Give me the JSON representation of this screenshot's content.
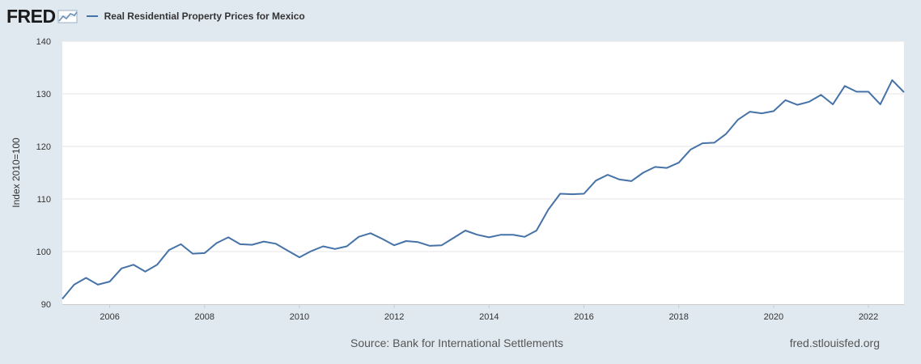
{
  "header": {
    "logo_text": "FRED",
    "logo_icon": "line-chart-icon"
  },
  "footer": {
    "source": "Source: Bank for International Settlements",
    "site": "fred.stlouisfed.org"
  },
  "colors": {
    "line": "#4572a7",
    "background": "#e1e9f0",
    "plot_background": "#ffffff",
    "grid": "#e6e6e6"
  },
  "chart_data": {
    "type": "line",
    "title": "",
    "xlabel": "",
    "ylabel": "Index 2010=100",
    "ylim": [
      90,
      140
    ],
    "yticks": [
      90,
      100,
      110,
      120,
      130,
      140
    ],
    "xlim": [
      2005.0,
      2022.75
    ],
    "xticks": [
      "2006",
      "2008",
      "2010",
      "2012",
      "2014",
      "2016",
      "2018",
      "2020",
      "2022"
    ],
    "grid": true,
    "legend_position": "top-left",
    "series": [
      {
        "name": "Real Residential Property Prices for Mexico",
        "x": [
          "2005-Q1",
          "2005-Q2",
          "2005-Q3",
          "2005-Q4",
          "2006-Q1",
          "2006-Q2",
          "2006-Q3",
          "2006-Q4",
          "2007-Q1",
          "2007-Q2",
          "2007-Q3",
          "2007-Q4",
          "2008-Q1",
          "2008-Q2",
          "2008-Q3",
          "2008-Q4",
          "2009-Q1",
          "2009-Q2",
          "2009-Q3",
          "2009-Q4",
          "2010-Q1",
          "2010-Q2",
          "2010-Q3",
          "2010-Q4",
          "2011-Q1",
          "2011-Q2",
          "2011-Q3",
          "2011-Q4",
          "2012-Q1",
          "2012-Q2",
          "2012-Q3",
          "2012-Q4",
          "2013-Q1",
          "2013-Q2",
          "2013-Q3",
          "2013-Q4",
          "2014-Q1",
          "2014-Q2",
          "2014-Q3",
          "2014-Q4",
          "2015-Q1",
          "2015-Q2",
          "2015-Q3",
          "2015-Q4",
          "2016-Q1",
          "2016-Q2",
          "2016-Q3",
          "2016-Q4",
          "2017-Q1",
          "2017-Q2",
          "2017-Q3",
          "2017-Q4",
          "2018-Q1",
          "2018-Q2",
          "2018-Q3",
          "2018-Q4",
          "2019-Q1",
          "2019-Q2",
          "2019-Q3",
          "2019-Q4",
          "2020-Q1",
          "2020-Q2",
          "2020-Q3",
          "2020-Q4",
          "2021-Q1",
          "2021-Q2",
          "2021-Q3",
          "2021-Q4",
          "2022-Q1",
          "2022-Q2",
          "2022-Q3",
          "2022-Q4"
        ],
        "values": [
          91.0,
          93.7,
          95.0,
          93.7,
          94.3,
          96.8,
          97.5,
          96.2,
          97.5,
          100.3,
          101.4,
          99.6,
          99.7,
          101.6,
          102.7,
          101.4,
          101.3,
          101.9,
          101.5,
          100.2,
          98.9,
          100.1,
          101.0,
          100.5,
          101.0,
          102.8,
          103.5,
          102.4,
          101.2,
          102.0,
          101.8,
          101.1,
          101.2,
          102.6,
          104.0,
          103.2,
          102.7,
          103.2,
          103.2,
          102.8,
          104.0,
          108.0,
          111.0,
          110.9,
          111.0,
          113.5,
          114.6,
          113.7,
          113.4,
          115.0,
          116.1,
          115.9,
          116.9,
          119.4,
          120.6,
          120.7,
          122.4,
          125.1,
          126.6,
          126.3,
          126.7,
          128.8,
          127.9,
          128.5,
          129.8,
          128.0,
          131.5,
          130.4,
          130.4,
          128.0,
          132.6,
          130.3
        ]
      }
    ]
  }
}
